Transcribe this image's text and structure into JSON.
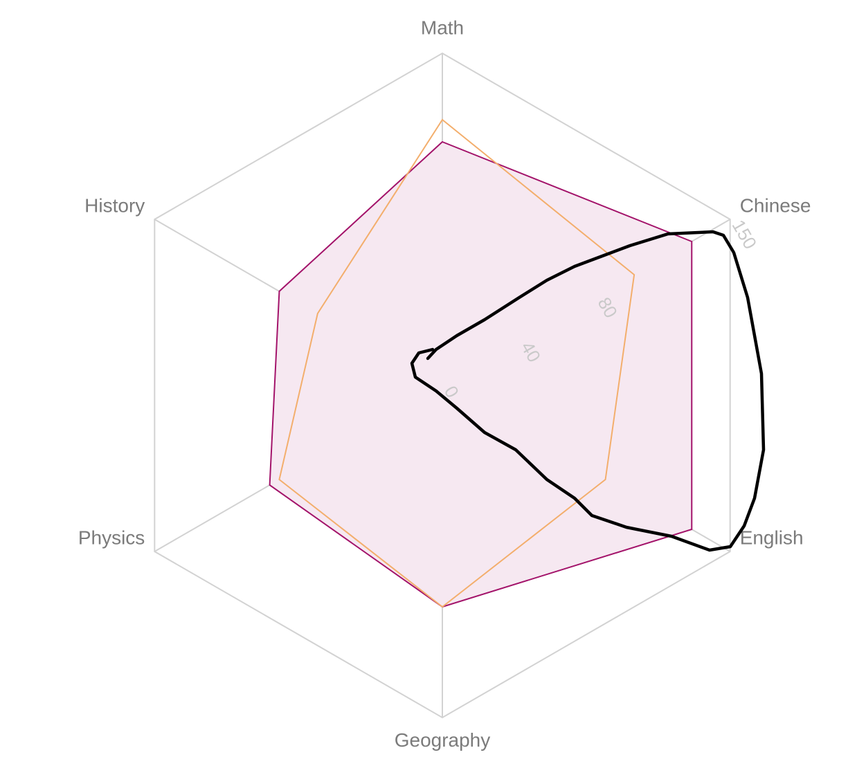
{
  "chart_data": {
    "type": "radar",
    "categories": [
      "Math",
      "Chinese",
      "English",
      "Geography",
      "Physics",
      "History"
    ],
    "rlim": [
      0,
      150
    ],
    "rticks": [
      0,
      40,
      80,
      150
    ],
    "grid": true,
    "series": [
      {
        "color": "#a3136a",
        "fill": "#f6e8f1",
        "values": [
          110,
          130,
          130,
          100,
          90,
          85
        ]
      },
      {
        "color": "#f3ae6c",
        "values": [
          120,
          100,
          85,
          100,
          85,
          65
        ]
      }
    ]
  }
}
